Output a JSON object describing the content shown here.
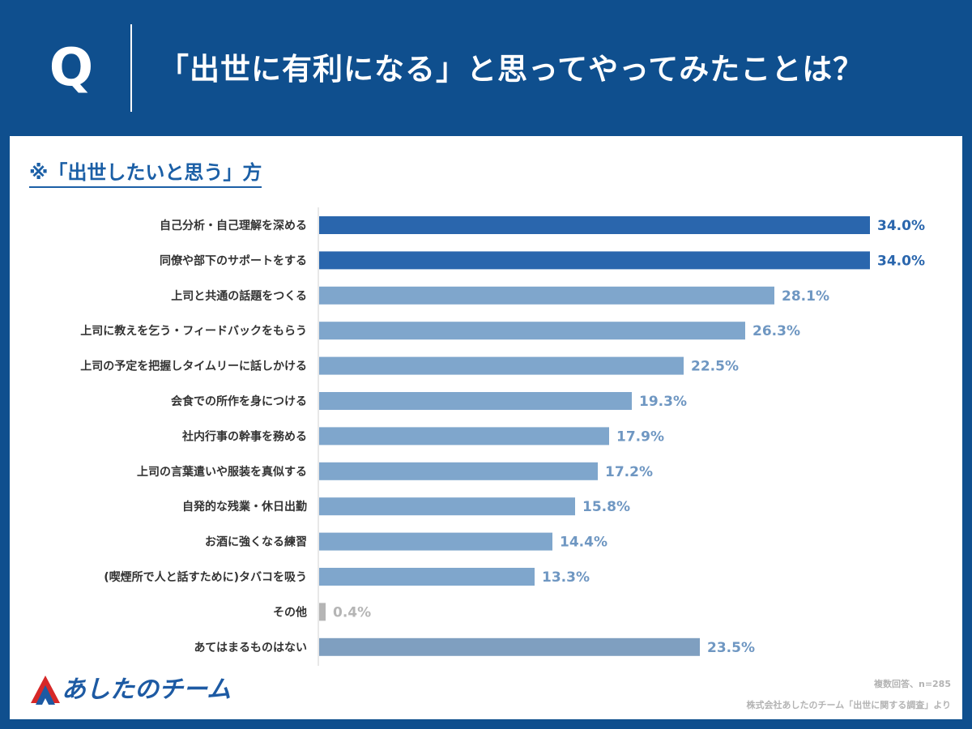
{
  "header": {
    "q_letter": "Q",
    "question": "「出世に有利になる」と思ってやってみたことは？"
  },
  "card": {
    "subtitle": "※「出世したいと思う」方"
  },
  "chart_data": {
    "type": "bar",
    "orientation": "horizontal",
    "categories": [
      "自己分析・自己理解を深める",
      "同僚や部下のサポートをする",
      "上司と共通の話題をつくる",
      "上司に教えを乞う・フィードバックをもらう",
      "上司の予定を把握しタイムリーに話しかける",
      "会食での所作を身につける",
      "社内行事の幹事を務める",
      "上司の言葉遣いや服装を真似する",
      "自発的な残業・休日出勤",
      "お酒に強くなる練習",
      "(喫煙所で人と話すために)タバコを吸う",
      "その他",
      "あてはまるものはない"
    ],
    "values": [
      34.0,
      34.0,
      28.1,
      26.3,
      22.5,
      19.3,
      17.9,
      17.2,
      15.8,
      14.4,
      13.3,
      0.4,
      23.5
    ],
    "value_labels": [
      "34.0%",
      "34.0%",
      "28.1%",
      "26.3%",
      "22.5%",
      "19.3%",
      "17.9%",
      "17.2%",
      "15.8%",
      "14.4%",
      "13.3%",
      "0.4%",
      "23.5%"
    ],
    "xlim": [
      0,
      41
    ],
    "grid": false,
    "colors": {
      "top": "#2a66ad",
      "top_label": "#2a66ad",
      "mid": "#7fa6cc",
      "mid_label": "#6f97c2",
      "other": "#b5b5b5",
      "other_label": "#b5b5b5",
      "none": "#7f9fc0",
      "none_label": "#6f97c2"
    }
  },
  "footer": {
    "logo_text": "あしたのチーム",
    "note_responses": "複数回答、n=285",
    "note_source": "株式会社あしたのチーム「出世に関する調査」より"
  }
}
